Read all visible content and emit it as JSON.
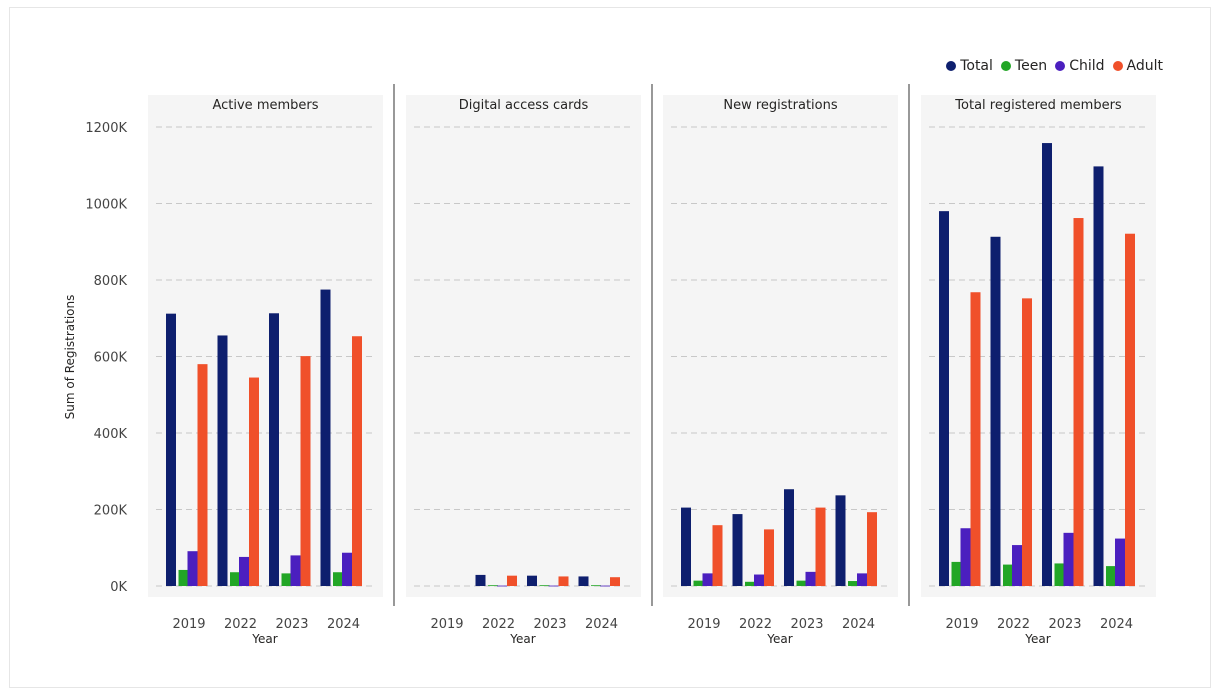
{
  "legend": [
    {
      "label": "Total",
      "color": "#0e1f6e"
    },
    {
      "label": "Teen",
      "color": "#22a626"
    },
    {
      "label": "Child",
      "color": "#4b1fbf"
    },
    {
      "label": "Adult",
      "color": "#f0502a"
    }
  ],
  "chart_data": {
    "type": "bar",
    "ylabel": "Sum of Registrations",
    "xlabel": "Year",
    "ylim": [
      0,
      1250000
    ],
    "yticks": [
      0,
      200000,
      400000,
      600000,
      800000,
      1000000,
      1200000
    ],
    "ytick_labels": [
      "0K",
      "200K",
      "400K",
      "600K",
      "800K",
      "1000K",
      "1200K"
    ],
    "grid": true,
    "legend_position": "top-right",
    "categories": [
      "2019",
      "2022",
      "2023",
      "2024"
    ],
    "panels": [
      {
        "title": "Active members",
        "series": [
          {
            "name": "Total",
            "values": [
              712000,
              655000,
              713000,
              775000
            ]
          },
          {
            "name": "Teen",
            "values": [
              42000,
              36000,
              33000,
              36000
            ]
          },
          {
            "name": "Child",
            "values": [
              91000,
              76000,
              80000,
              87000
            ]
          },
          {
            "name": "Adult",
            "values": [
              580000,
              545000,
              601000,
              653000
            ]
          }
        ]
      },
      {
        "title": "Digital access cards",
        "series": [
          {
            "name": "Total",
            "values": [
              0,
              29000,
              27000,
              25000
            ]
          },
          {
            "name": "Teen",
            "values": [
              0,
              2000,
              2000,
              2000
            ]
          },
          {
            "name": "Child",
            "values": [
              0,
              1000,
              1000,
              1000
            ]
          },
          {
            "name": "Adult",
            "values": [
              0,
              27000,
              25000,
              23000
            ]
          }
        ]
      },
      {
        "title": "New registrations",
        "series": [
          {
            "name": "Total",
            "values": [
              205000,
              188000,
              253000,
              237000
            ]
          },
          {
            "name": "Teen",
            "values": [
              14000,
              11000,
              14000,
              13000
            ]
          },
          {
            "name": "Child",
            "values": [
              33000,
              30000,
              37000,
              33000
            ]
          },
          {
            "name": "Adult",
            "values": [
              159000,
              148000,
              205000,
              193000
            ]
          }
        ]
      },
      {
        "title": "Total registered members",
        "series": [
          {
            "name": "Total",
            "values": [
              980000,
              913000,
              1158000,
              1097000
            ]
          },
          {
            "name": "Teen",
            "values": [
              63000,
              56000,
              59000,
              52000
            ]
          },
          {
            "name": "Child",
            "values": [
              151000,
              107000,
              139000,
              124000
            ]
          },
          {
            "name": "Adult",
            "values": [
              768000,
              752000,
              962000,
              921000
            ]
          }
        ]
      }
    ]
  }
}
